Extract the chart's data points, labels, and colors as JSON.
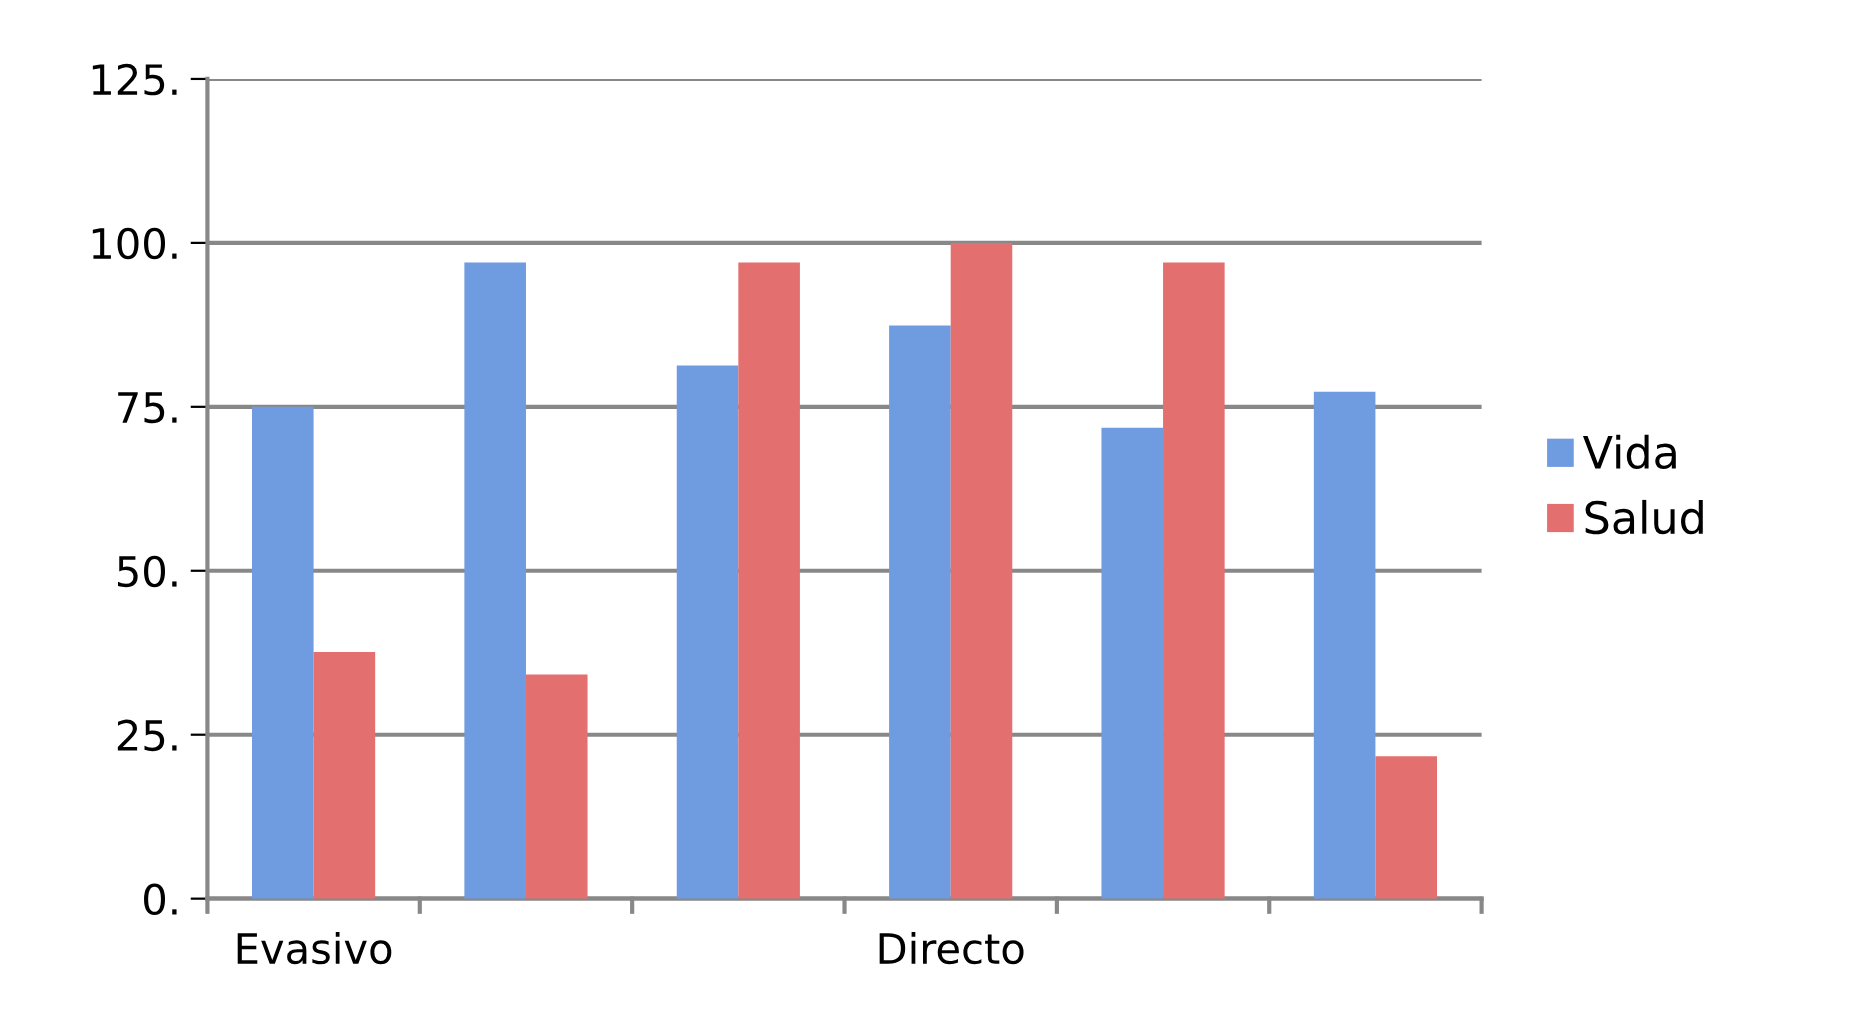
{
  "chart_data": {
    "type": "bar",
    "categories": [
      "Evasivo",
      null,
      null,
      "Directo",
      null,
      null
    ],
    "series": [
      {
        "name": "Vida",
        "color": "#6f9be0",
        "values": [
          75,
          97,
          81.3,
          87.4,
          71.8,
          77.3
        ]
      },
      {
        "name": "Salud",
        "color": "#e36f6f",
        "values": [
          37.6,
          34.2,
          97,
          100,
          97,
          21.7
        ]
      }
    ],
    "ylim": [
      0,
      125
    ],
    "yticks": [
      {
        "value": 0,
        "label": "0."
      },
      {
        "value": 25,
        "label": "25."
      },
      {
        "value": 50,
        "label": "50."
      },
      {
        "value": 75,
        "label": "75."
      },
      {
        "value": 100,
        "label": "100."
      },
      {
        "value": 125,
        "label": "125."
      }
    ],
    "grid": "y",
    "legend": "right"
  }
}
